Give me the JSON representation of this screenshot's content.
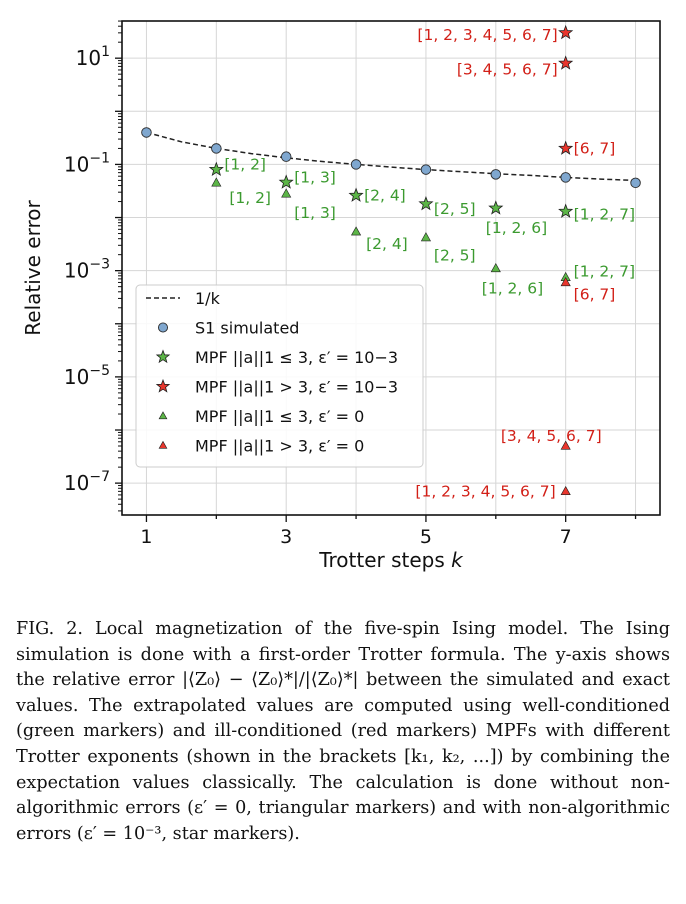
{
  "chart_data": {
    "type": "scatter",
    "xlabel": "Trotter steps k",
    "ylabel": "Relative error",
    "x_ticks": [
      "1",
      "3",
      "5",
      "7"
    ],
    "y_ticks": [
      "10^1",
      "10^-1",
      "10^-3",
      "10^-5",
      "10^-7"
    ],
    "xlim": [
      0.65,
      8.35
    ],
    "ylog_range": [
      -7.6,
      1.7
    ],
    "y_scale": "log",
    "grid": true,
    "legend_position": "lower-left",
    "colors": {
      "s1": "#7fa7cf",
      "green": "#5cb547",
      "red": "#e8362d",
      "green_label": "#3b9a2f",
      "red_label": "#d21f17",
      "dashed": "#222222"
    },
    "series": [
      {
        "name": "1/k",
        "kind": "dashed-line",
        "x": [
          1,
          1.5,
          2,
          2.5,
          3,
          3.5,
          4,
          4.5,
          5,
          5.5,
          6,
          6.5,
          7,
          7.5,
          8
        ],
        "y": [
          0.4,
          0.267,
          0.2,
          0.16,
          0.133,
          0.114,
          0.1,
          0.089,
          0.08,
          0.073,
          0.067,
          0.062,
          0.057,
          0.053,
          0.05
        ]
      },
      {
        "name": "S_1 simulated",
        "kind": "circle",
        "x": [
          1,
          2,
          3,
          4,
          5,
          6,
          7,
          8
        ],
        "y": [
          0.4,
          0.2,
          0.14,
          0.1,
          0.08,
          0.065,
          0.057,
          0.045
        ]
      },
      {
        "name": "MPF ||a||_1 ≤ 3, ε' = 10^-3",
        "kind": "green-star",
        "x": [
          2,
          3,
          4,
          5,
          6,
          7
        ],
        "y": [
          0.08,
          0.046,
          0.026,
          0.018,
          0.015,
          0.013
        ],
        "labels": [
          "[1, 2]",
          "[1, 3]",
          "[2, 4]",
          "[2, 5]",
          "[1, 2, 6]",
          "[1, 2, 7]"
        ]
      },
      {
        "name": "MPF ||a||_1 > 3, ε' = 10^-3",
        "kind": "red-star",
        "x": [
          7,
          7,
          7
        ],
        "y": [
          30,
          8,
          0.2
        ],
        "labels": [
          "[1, 2, 3, 4, 5, 6, 7]",
          "[3, 4, 5, 6, 7]",
          "[6, 7]"
        ]
      },
      {
        "name": "MPF ||a||_1 ≤ 3, ε' = 0",
        "kind": "green-triangle",
        "x": [
          2,
          3,
          4,
          5,
          6,
          7
        ],
        "y": [
          0.045,
          0.028,
          0.0054,
          0.0042,
          0.0011,
          0.00075
        ],
        "labels": [
          "[1, 2]",
          "[1, 3]",
          "[2, 4]",
          "[2, 5]",
          "[1, 2, 6]",
          "[1, 2, 7]"
        ]
      },
      {
        "name": "MPF ||a||_1 > 3, ε' = 0",
        "kind": "red-triangle",
        "x": [
          7,
          7,
          7
        ],
        "y": [
          0.0006,
          5e-07,
          7e-08
        ],
        "labels": [
          "[6, 7]",
          "[3, 4, 5, 6, 7]",
          "[1, 2, 3, 4, 5, 6, 7]"
        ]
      }
    ],
    "legend": [
      "1/k",
      "S1 simulated",
      "MPF ||a||1 ≤ 3, ε′ = 10−3",
      "MPF ||a||1 > 3, ε′ = 10−3",
      "MPF ||a||1 ≤ 3, ε′ = 0",
      "MPF ||a||1 > 3, ε′ = 0"
    ]
  },
  "caption": "FIG. 2. Local magnetization of the five-spin Ising model. The Ising simulation is done with a first-order Trotter formula. The y-axis shows the relative error |⟨Z₀⟩ − ⟨Z₀⟩*|/|⟨Z₀⟩*| between the simulated and exact values. The extrapolated values are computed using well-conditioned (green markers) and ill-conditioned (red markers) MPFs with different Trotter exponents (shown in the brackets [k₁, k₂, ...]) by combining the expectation values classically. The calculation is done without non-algorithmic errors (ε′ = 0, triangular markers) and with non-algorithmic errors (ε′ = 10⁻³, star markers)."
}
